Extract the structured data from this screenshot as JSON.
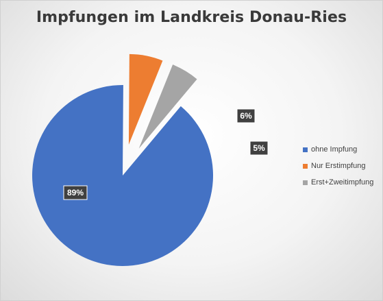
{
  "chart_data": {
    "type": "pie",
    "title": "Impfungen im Landkreis Donau-Ries",
    "categories": [
      "ohne Impfung",
      "Nur Erstimpfung",
      "Erst+Zweitimpfung"
    ],
    "values": [
      89,
      6,
      5
    ],
    "data_labels": [
      "89%",
      "6%",
      "5%"
    ],
    "colors": [
      "#4472c4",
      "#ed7d31",
      "#a5a5a5"
    ],
    "exploded_slices": [
      "Nur Erstimpfung",
      "Erst+Zweitimpfung"
    ],
    "legend_position": "right"
  },
  "legend": {
    "items": [
      {
        "label": "ohne Impfung",
        "color": "#4472c4"
      },
      {
        "label": "Nur Erstimpfung",
        "color": "#ed7d31"
      },
      {
        "label": "Erst+Zweitimpfung",
        "color": "#a5a5a5"
      }
    ]
  }
}
